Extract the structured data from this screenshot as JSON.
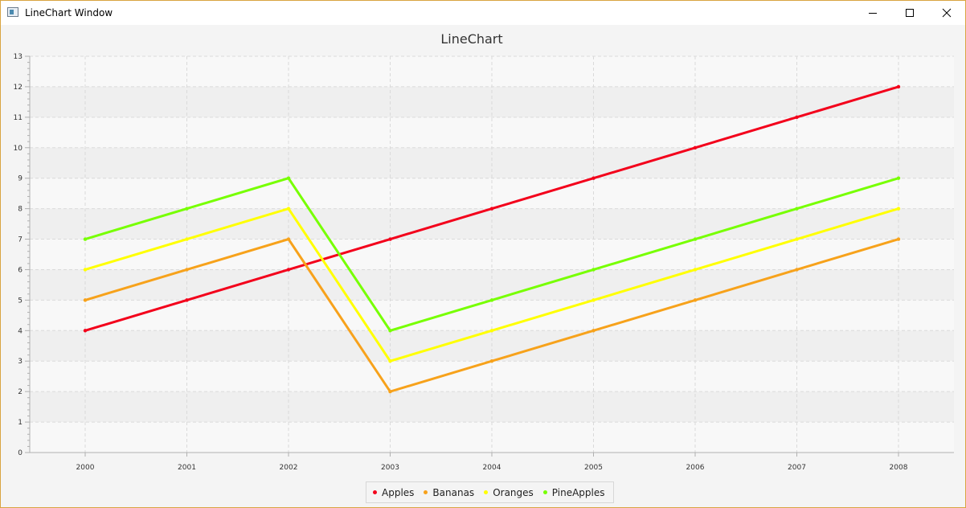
{
  "window": {
    "title": "LineChart Window",
    "minimize_icon": "minimize-icon",
    "maximize_icon": "maximize-icon",
    "close_icon": "close-icon"
  },
  "chart_data": {
    "type": "line",
    "title": "LineChart",
    "xlabel": "",
    "ylabel": "",
    "categories": [
      "2000",
      "2001",
      "2002",
      "2003",
      "2004",
      "2005",
      "2006",
      "2007",
      "2008"
    ],
    "ylim": [
      0,
      13
    ],
    "yticks": [
      "0",
      "1",
      "2",
      "3",
      "4",
      "5",
      "6",
      "7",
      "8",
      "9",
      "10",
      "11",
      "12",
      "13"
    ],
    "grid": true,
    "legend_position": "bottom",
    "series": [
      {
        "name": "Apples",
        "color": "#f3001b",
        "values": [
          4,
          5,
          6,
          7,
          8,
          9,
          10,
          11,
          12
        ]
      },
      {
        "name": "Bananas",
        "color": "#f7a21b",
        "values": [
          5,
          6,
          7,
          2,
          3,
          4,
          5,
          6,
          7
        ]
      },
      {
        "name": "Oranges",
        "color": "#ffff00",
        "values": [
          6,
          7,
          8,
          3,
          4,
          5,
          6,
          7,
          8
        ]
      },
      {
        "name": "PineApples",
        "color": "#77ff00",
        "values": [
          7,
          8,
          9,
          4,
          5,
          6,
          7,
          8,
          9
        ]
      }
    ]
  }
}
